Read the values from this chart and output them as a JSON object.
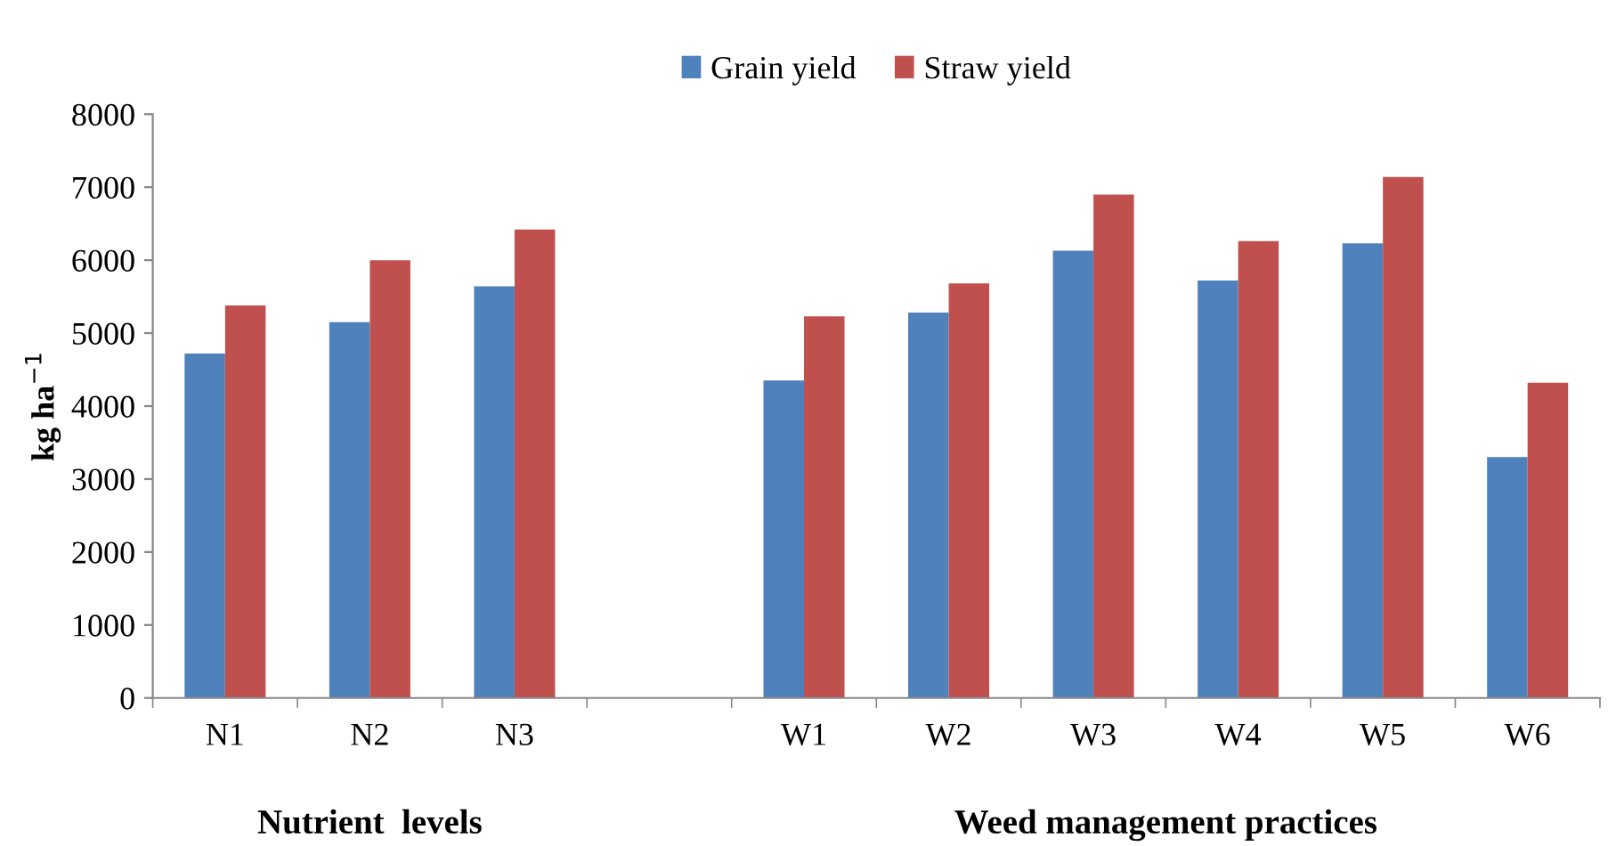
{
  "chart_data": {
    "type": "bar",
    "ylabel": "kg ha$^{−1}$",
    "categories": [
      "N1",
      "N2",
      "N3",
      null,
      "W1",
      "W2",
      "W3",
      "W4",
      "W5",
      "W6"
    ],
    "series": [
      {
        "name": "Grain yield",
        "color": "#4f81bd",
        "values": [
          4720,
          5150,
          5640,
          null,
          4350,
          5280,
          6130,
          5720,
          6230,
          3300
        ]
      },
      {
        "name": "Straw yield",
        "color": "#c0504d",
        "values": [
          5380,
          6000,
          6420,
          null,
          5230,
          5680,
          6900,
          6260,
          7140,
          4320
        ]
      }
    ],
    "ylim": [
      0,
      8000
    ],
    "yticks": [
      0,
      1000,
      2000,
      3000,
      4000,
      5000,
      6000,
      7000,
      8000
    ],
    "annotations": [
      "Nutrient  levels",
      "Weed management practices"
    ],
    "grid": false,
    "legend": "top"
  }
}
